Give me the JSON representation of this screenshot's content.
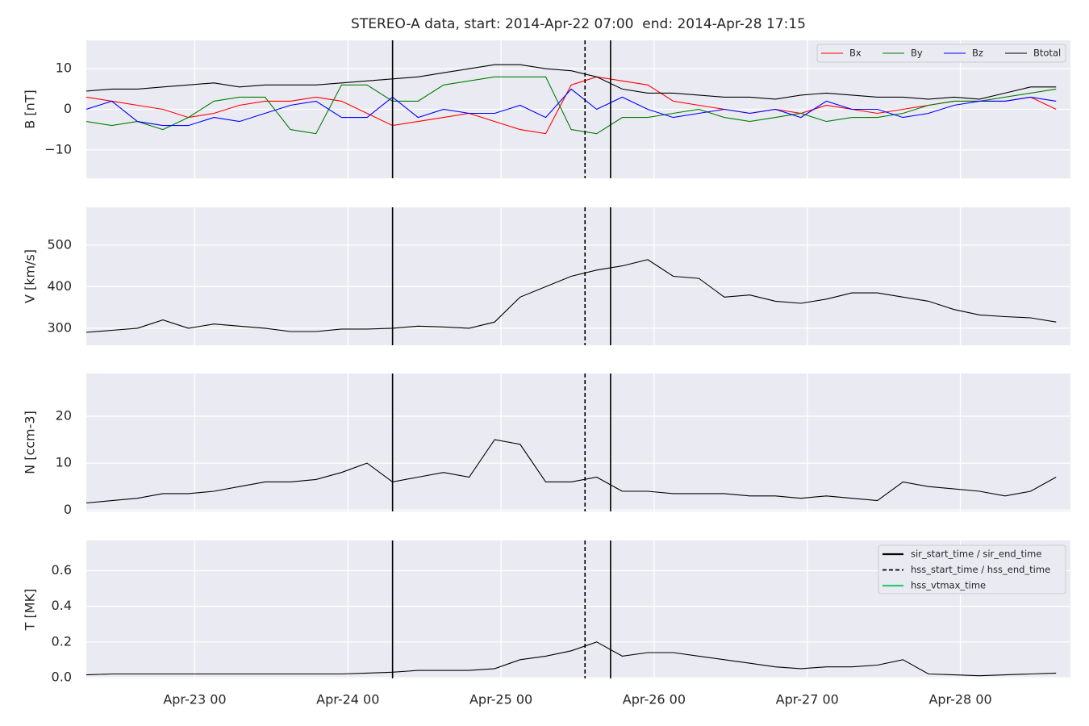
{
  "chart_data": {
    "type": "line",
    "title": "STEREO-A data, start: 2014-Apr-22 07:00  end: 2014-Apr-28 17:15",
    "grid": true,
    "x": [
      "2014-04-22 07:00",
      "2014-04-22 11:00",
      "2014-04-22 15:00",
      "2014-04-22 19:00",
      "2014-04-22 23:00",
      "2014-04-23 03:00",
      "2014-04-23 07:00",
      "2014-04-23 11:00",
      "2014-04-23 15:00",
      "2014-04-23 19:00",
      "2014-04-23 23:00",
      "2014-04-24 03:00",
      "2014-04-24 07:00",
      "2014-04-24 11:00",
      "2014-04-24 15:00",
      "2014-04-24 19:00",
      "2014-04-24 23:00",
      "2014-04-25 03:00",
      "2014-04-25 07:00",
      "2014-04-25 11:00",
      "2014-04-25 15:00",
      "2014-04-25 19:00",
      "2014-04-25 23:00",
      "2014-04-26 03:00",
      "2014-04-26 07:00",
      "2014-04-26 11:00",
      "2014-04-26 15:00",
      "2014-04-26 19:00",
      "2014-04-26 23:00",
      "2014-04-27 03:00",
      "2014-04-27 07:00",
      "2014-04-27 11:00",
      "2014-04-27 15:00",
      "2014-04-27 19:00",
      "2014-04-27 23:00",
      "2014-04-28 03:00",
      "2014-04-28 07:00",
      "2014-04-28 11:00",
      "2014-04-28 15:00"
    ],
    "xlim": [
      "2014-04-22 07:00",
      "2014-04-28 17:15"
    ],
    "xticks": [
      {
        "value": "2014-04-23 00:00",
        "label": "Apr-23 00"
      },
      {
        "value": "2014-04-24 00:00",
        "label": "Apr-24 00"
      },
      {
        "value": "2014-04-25 00:00",
        "label": "Apr-25 00"
      },
      {
        "value": "2014-04-26 00:00",
        "label": "Apr-26 00"
      },
      {
        "value": "2014-04-27 00:00",
        "label": "Apr-27 00"
      },
      {
        "value": "2014-04-28 00:00",
        "label": "Apr-28 00"
      }
    ],
    "event_lines": [
      {
        "x": "2014-04-24 07:00",
        "dashed": false
      },
      {
        "x": "2014-04-25 13:10",
        "dashed": true
      },
      {
        "x": "2014-04-25 17:10",
        "dashed": false
      }
    ],
    "event_legend": [
      {
        "name": "sir_start_time / sir_end_time",
        "color": "#000000",
        "dashed": false
      },
      {
        "name": "hss_start_time / hss_end_time",
        "color": "#000000",
        "dashed": true
      },
      {
        "name": "hss_vtmax_time",
        "color": "#2ecc71",
        "dashed": false
      }
    ],
    "panels": [
      {
        "ylabel": "B [nT]",
        "ylim": [
          -17,
          17
        ],
        "yticks": [
          {
            "value": -10,
            "label": "−10"
          },
          0,
          10
        ],
        "legend": "upper right",
        "series": [
          {
            "name": "Bx",
            "color": "#ff0000",
            "values": [
              3,
              2,
              1,
              0,
              -2,
              -1,
              1,
              2,
              2,
              3,
              2,
              -1,
              -4,
              -3,
              -2,
              -1,
              -3,
              -5,
              -6,
              6,
              8,
              7,
              6,
              2,
              1,
              0,
              -1,
              0,
              -1,
              1,
              0,
              -1,
              0,
              1,
              2,
              2,
              2,
              3,
              0
            ]
          },
          {
            "name": "By",
            "color": "#008000",
            "values": [
              -3,
              -4,
              -3,
              -5,
              -2,
              2,
              3,
              3,
              -5,
              -6,
              6,
              6,
              2,
              2,
              6,
              7,
              8,
              8,
              8,
              -5,
              -6,
              -2,
              -2,
              -1,
              0,
              -2,
              -3,
              -2,
              -1,
              -3,
              -2,
              -2,
              -1,
              1,
              2,
              2,
              3,
              4,
              5
            ]
          },
          {
            "name": "Bz",
            "color": "#0000ff",
            "values": [
              0,
              2,
              -3,
              -4,
              -4,
              -2,
              -3,
              -1,
              1,
              2,
              -2,
              -2,
              3,
              -2,
              0,
              -1,
              -1,
              1,
              -2,
              5,
              0,
              3,
              0,
              -2,
              -1,
              0,
              -1,
              0,
              -2,
              2,
              0,
              0,
              -2,
              -1,
              1,
              2,
              2,
              3,
              2
            ]
          },
          {
            "name": "Btotal",
            "color": "#000000",
            "values": [
              4.5,
              5,
              5,
              5.5,
              6,
              6.5,
              5.5,
              6,
              6,
              6,
              6.5,
              7,
              7.5,
              8,
              9,
              10,
              11,
              11,
              10,
              9.5,
              8,
              5,
              4,
              4,
              3.5,
              3,
              3,
              2.5,
              3.5,
              4,
              3.5,
              3,
              3,
              2.5,
              3,
              2.5,
              4,
              5.5,
              5.5
            ]
          }
        ]
      },
      {
        "ylabel": "V [km/s]",
        "ylim": [
          259,
          591
        ],
        "yticks": [
          300,
          400,
          500
        ],
        "series": [
          {
            "name": "V",
            "color": "#000000",
            "values": [
              290,
              295,
              300,
              320,
              300,
              310,
              305,
              300,
              292,
              292,
              298,
              298,
              300,
              305,
              303,
              300,
              315,
              375,
              400,
              425,
              440,
              450,
              465,
              425,
              420,
              375,
              380,
              365,
              360,
              370,
              385,
              385,
              375,
              365,
              345,
              332,
              328,
              325,
              315
            ]
          }
        ]
      },
      {
        "ylabel": "N [ccm-3]",
        "ylim": [
          -0.3,
          29.1
        ],
        "yticks": [
          0,
          10,
          20
        ],
        "series": [
          {
            "name": "N",
            "color": "#000000",
            "values": [
              1.5,
              2,
              2.5,
              3.5,
              3.5,
              4,
              5,
              6,
              6,
              6.5,
              8,
              10,
              6,
              7,
              8,
              7,
              15,
              14,
              6,
              6,
              7,
              4,
              4,
              3.5,
              3.5,
              3.5,
              3,
              3,
              2.5,
              3,
              2.5,
              2,
              6,
              5,
              4.5,
              4,
              3,
              4,
              7
            ]
          }
        ]
      },
      {
        "ylabel": "T [MK]",
        "ylim": [
          -0.005,
          0.77
        ],
        "yticks": [
          {
            "value": 0,
            "label": "0.0"
          },
          0.2,
          0.4,
          0.6
        ],
        "series": [
          {
            "name": "T",
            "color": "#000000",
            "values": [
              0.015,
              0.02,
              0.02,
              0.02,
              0.02,
              0.02,
              0.02,
              0.02,
              0.02,
              0.02,
              0.02,
              0.025,
              0.03,
              0.04,
              0.04,
              0.04,
              0.05,
              0.1,
              0.12,
              0.15,
              0.2,
              0.12,
              0.14,
              0.14,
              0.12,
              0.1,
              0.08,
              0.06,
              0.05,
              0.06,
              0.06,
              0.07,
              0.1,
              0.02,
              0.015,
              0.01,
              0.015,
              0.02,
              0.025
            ]
          }
        ]
      }
    ]
  }
}
